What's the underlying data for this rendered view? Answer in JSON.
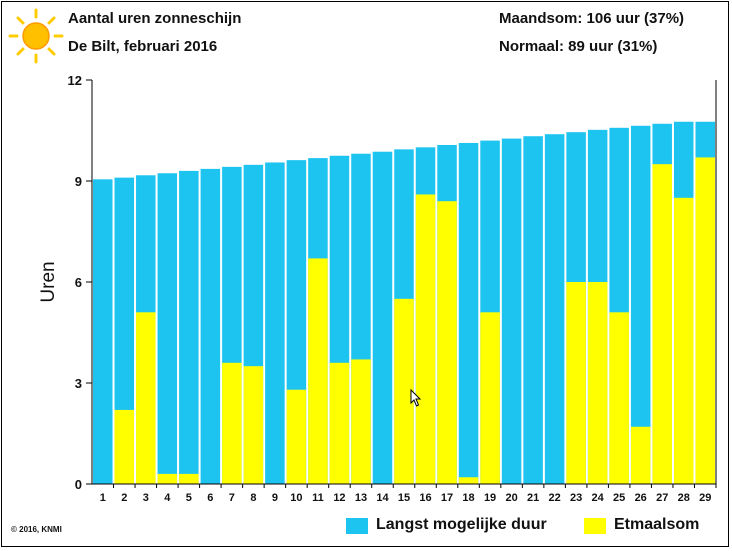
{
  "header": {
    "title": "Aantal uren zonneschijn",
    "subtitle": "De Bilt, februari 2016",
    "month_total": "Maandsom: 106 uur (37%)",
    "normal": "Normaal: 89 uur (31%)"
  },
  "copyright": "© 2016, KNMI",
  "icons": {
    "logo": "sun-icon",
    "cursor": "mouse-pointer-icon"
  },
  "chart_data": {
    "type": "bar",
    "ylabel": "Uren",
    "ylim": [
      0,
      12
    ],
    "yticks": [
      "0",
      "3",
      "6",
      "9",
      "12"
    ],
    "categories": [
      "1",
      "2",
      "3",
      "4",
      "5",
      "6",
      "7",
      "8",
      "9",
      "10",
      "11",
      "12",
      "13",
      "14",
      "15",
      "16",
      "17",
      "18",
      "19",
      "20",
      "21",
      "22",
      "23",
      "24",
      "25",
      "26",
      "27",
      "28",
      "29"
    ],
    "series": [
      {
        "name": "Langst mogelijke duur",
        "color": "#1ec4f0",
        "values": [
          9.05,
          9.1,
          9.17,
          9.23,
          9.3,
          9.36,
          9.42,
          9.48,
          9.55,
          9.62,
          9.68,
          9.75,
          9.81,
          9.87,
          9.94,
          10.0,
          10.07,
          10.13,
          10.2,
          10.26,
          10.33,
          10.39,
          10.45,
          10.52,
          10.58,
          10.64,
          10.7,
          10.76,
          10.76
        ]
      },
      {
        "name": "Etmaalsom",
        "color": "#ffff00",
        "values": [
          0,
          2.2,
          5.1,
          0.3,
          0.3,
          0,
          3.6,
          3.5,
          0,
          2.8,
          6.7,
          3.6,
          3.7,
          0,
          5.5,
          8.6,
          8.4,
          0.2,
          5.1,
          0,
          0,
          0,
          6.0,
          6.0,
          5.1,
          1.7,
          9.5,
          8.5,
          9.7
        ]
      }
    ],
    "grid": false,
    "legend": "bottom-right"
  }
}
